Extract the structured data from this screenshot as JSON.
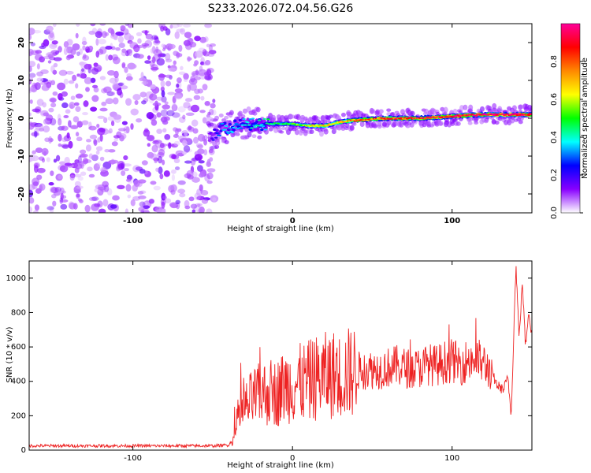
{
  "title": "S233.2026.072.04.56.G26",
  "chart_data": [
    {
      "type": "heatmap",
      "xlabel": "Height of straight line (km)",
      "ylabel": "Frequency (Hz)",
      "xlim": [
        -165,
        150
      ],
      "ylim": [
        -25,
        25
      ],
      "x_ticks": [
        -100,
        0,
        100
      ],
      "y_ticks": [
        -20,
        -10,
        0,
        10,
        20
      ],
      "noise_region_x": [
        -165,
        -52
      ],
      "signal_track": {
        "x": [
          -52,
          -45,
          -40,
          -30,
          -20,
          -10,
          0,
          10,
          20,
          30,
          40,
          60,
          80,
          100,
          120,
          140,
          150
        ],
        "frequency": [
          -5,
          -3,
          -2.5,
          -1.5,
          -1.5,
          -1.5,
          -1.5,
          -2,
          -2,
          -1,
          -0.5,
          0,
          0,
          0.5,
          1,
          1,
          1
        ],
        "amplitude": [
          0.15,
          0.3,
          0.35,
          0.35,
          0.4,
          0.45,
          0.5,
          0.6,
          0.65,
          0.7,
          0.75,
          0.8,
          0.85,
          0.9,
          0.92,
          0.95,
          0.85
        ]
      },
      "colorbar": {
        "label": "Normalized spectral amplitude",
        "range": [
          0,
          1
        ],
        "ticks": [
          0.0,
          0.2,
          0.4,
          0.6,
          0.8
        ],
        "colors": [
          "#ffffff",
          "#8800ff",
          "#0000ff",
          "#00ffff",
          "#00ff00",
          "#ffff00",
          "#ff8800",
          "#ff0000",
          "#ff0099"
        ]
      }
    },
    {
      "type": "line",
      "xlabel": "Height of straight line (km)",
      "ylabel": "SNR (10 * v/v)",
      "xlim": [
        -165,
        150
      ],
      "ylim": [
        0,
        1100
      ],
      "x_ticks": [
        -100,
        0,
        100
      ],
      "y_ticks": [
        0,
        200,
        400,
        600,
        800,
        1000
      ],
      "color": "#ee2222",
      "series": [
        {
          "x": [
            -165,
            -150,
            -130,
            -110,
            -90,
            -70,
            -50,
            -40,
            -36,
            -34,
            -30,
            -25,
            -20,
            -15,
            -10,
            -5,
            0,
            5,
            10,
            15,
            20,
            25,
            30,
            35,
            40,
            45,
            50,
            55,
            60,
            65,
            70,
            75,
            80,
            85,
            90,
            95,
            100,
            105,
            110,
            115,
            120,
            125,
            128,
            132,
            135,
            137,
            140,
            142,
            144,
            146,
            148,
            150
          ],
          "values": [
            25,
            25,
            25,
            25,
            25,
            25,
            25,
            30,
            80,
            200,
            240,
            300,
            320,
            340,
            330,
            370,
            380,
            390,
            400,
            420,
            430,
            440,
            430,
            450,
            460,
            465,
            470,
            470,
            480,
            490,
            480,
            470,
            480,
            500,
            490,
            510,
            520,
            500,
            520,
            530,
            500,
            450,
            380,
            350,
            420,
            200,
            1080,
            650,
            980,
            600,
            820,
            650
          ]
        }
      ]
    }
  ]
}
